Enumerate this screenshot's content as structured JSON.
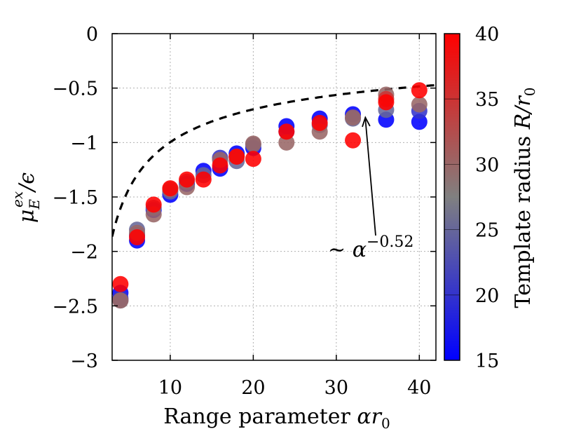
{
  "chart_data": {
    "type": "scatter",
    "xlabel_text": "Range parameter ",
    "xlabel_math": "αr",
    "xlabel_sub": "0",
    "ylabel_main": "μ",
    "ylabel_sub": "E",
    "ylabel_sup": "ex",
    "ylabel_tail": "/ϵ",
    "colorbar_label_text": "Template radius ",
    "colorbar_label_math": "R/r",
    "colorbar_label_sub": "0",
    "annotation_tilde": "∼ ",
    "annotation_base": "α",
    "annotation_exp": "−0.52",
    "annotation_point": [
      33.5,
      -0.77
    ],
    "xlim": [
      3,
      42
    ],
    "ylim": [
      -3,
      0
    ],
    "xticks": [
      10,
      20,
      30,
      40
    ],
    "xtick_labels": [
      "10",
      "20",
      "30",
      "40"
    ],
    "yticks": [
      0,
      -0.5,
      -1,
      -1.5,
      -2,
      -2.5,
      -3
    ],
    "ytick_labels": [
      "0",
      "−0.5",
      "−1",
      "−1.5",
      "−2",
      "−2.5",
      "−3"
    ],
    "grid": true,
    "colorbar": {
      "range": [
        15,
        40
      ],
      "ticks": [
        15,
        20,
        25,
        30,
        35,
        40
      ],
      "tick_labels": [
        "15",
        "20",
        "25",
        "30",
        "35",
        "40"
      ],
      "low_color": "#0000ff",
      "mid_color": "#808080",
      "high_color": "#ff0000"
    },
    "fit": {
      "prefactor": -3.3,
      "exponent": -0.52,
      "x_range": [
        3,
        42
      ],
      "style": "dashed",
      "color": "#000000"
    },
    "points": [
      {
        "x": 4,
        "y": -2.38,
        "r": 15
      },
      {
        "x": 4,
        "y": -2.43,
        "r": 20
      },
      {
        "x": 4,
        "y": -2.45,
        "r": 25
      },
      {
        "x": 4,
        "y": -2.45,
        "r": 30
      },
      {
        "x": 4,
        "y": -2.3,
        "r": 40
      },
      {
        "x": 6,
        "y": -1.9,
        "r": 15
      },
      {
        "x": 6,
        "y": -1.85,
        "r": 20
      },
      {
        "x": 6,
        "y": -1.8,
        "r": 25
      },
      {
        "x": 6,
        "y": -1.83,
        "r": 30
      },
      {
        "x": 6,
        "y": -1.87,
        "r": 40
      },
      {
        "x": 8,
        "y": -1.62,
        "r": 15
      },
      {
        "x": 8,
        "y": -1.6,
        "r": 25
      },
      {
        "x": 8,
        "y": -1.66,
        "r": 30
      },
      {
        "x": 8,
        "y": -1.57,
        "r": 40
      },
      {
        "x": 10,
        "y": -1.48,
        "r": 15
      },
      {
        "x": 10,
        "y": -1.45,
        "r": 25
      },
      {
        "x": 10,
        "y": -1.43,
        "r": 30
      },
      {
        "x": 10,
        "y": -1.42,
        "r": 40
      },
      {
        "x": 12,
        "y": -1.38,
        "r": 15
      },
      {
        "x": 12,
        "y": -1.36,
        "r": 25
      },
      {
        "x": 12,
        "y": -1.41,
        "r": 30
      },
      {
        "x": 12,
        "y": -1.34,
        "r": 40
      },
      {
        "x": 14,
        "y": -1.26,
        "r": 15
      },
      {
        "x": 14,
        "y": -1.3,
        "r": 25
      },
      {
        "x": 14,
        "y": -1.34,
        "r": 40
      },
      {
        "x": 16,
        "y": -1.24,
        "r": 15
      },
      {
        "x": 16,
        "y": -1.14,
        "r": 20
      },
      {
        "x": 16,
        "y": -1.16,
        "r": 30
      },
      {
        "x": 16,
        "y": -1.21,
        "r": 40
      },
      {
        "x": 18,
        "y": -1.1,
        "r": 15
      },
      {
        "x": 18,
        "y": -1.17,
        "r": 25
      },
      {
        "x": 18,
        "y": -1.13,
        "r": 30
      },
      {
        "x": 18,
        "y": -1.13,
        "r": 40
      },
      {
        "x": 20,
        "y": -1.05,
        "r": 15
      },
      {
        "x": 20,
        "y": -1.02,
        "r": 25
      },
      {
        "x": 20,
        "y": -1.01,
        "r": 30
      },
      {
        "x": 20,
        "y": -1.15,
        "r": 40
      },
      {
        "x": 24,
        "y": -0.85,
        "r": 15
      },
      {
        "x": 24,
        "y": -0.9,
        "r": 20
      },
      {
        "x": 24,
        "y": -1.0,
        "r": 30
      },
      {
        "x": 24,
        "y": -0.9,
        "r": 40
      },
      {
        "x": 28,
        "y": -0.78,
        "r": 15
      },
      {
        "x": 28,
        "y": -0.84,
        "r": 25
      },
      {
        "x": 28,
        "y": -0.9,
        "r": 30
      },
      {
        "x": 28,
        "y": -0.82,
        "r": 40
      },
      {
        "x": 32,
        "y": -0.74,
        "r": 15
      },
      {
        "x": 32,
        "y": -0.78,
        "r": 25
      },
      {
        "x": 32,
        "y": -0.77,
        "r": 30
      },
      {
        "x": 32,
        "y": -0.98,
        "r": 40
      },
      {
        "x": 36,
        "y": -0.79,
        "r": 15
      },
      {
        "x": 36,
        "y": -0.7,
        "r": 25
      },
      {
        "x": 36,
        "y": -0.56,
        "r": 30
      },
      {
        "x": 36,
        "y": -0.6,
        "r": 35
      },
      {
        "x": 36,
        "y": -0.63,
        "r": 40
      },
      {
        "x": 40,
        "y": -0.81,
        "r": 15
      },
      {
        "x": 40,
        "y": -0.71,
        "r": 20
      },
      {
        "x": 40,
        "y": -0.65,
        "r": 30
      },
      {
        "x": 40,
        "y": -0.52,
        "r": 40
      }
    ]
  }
}
